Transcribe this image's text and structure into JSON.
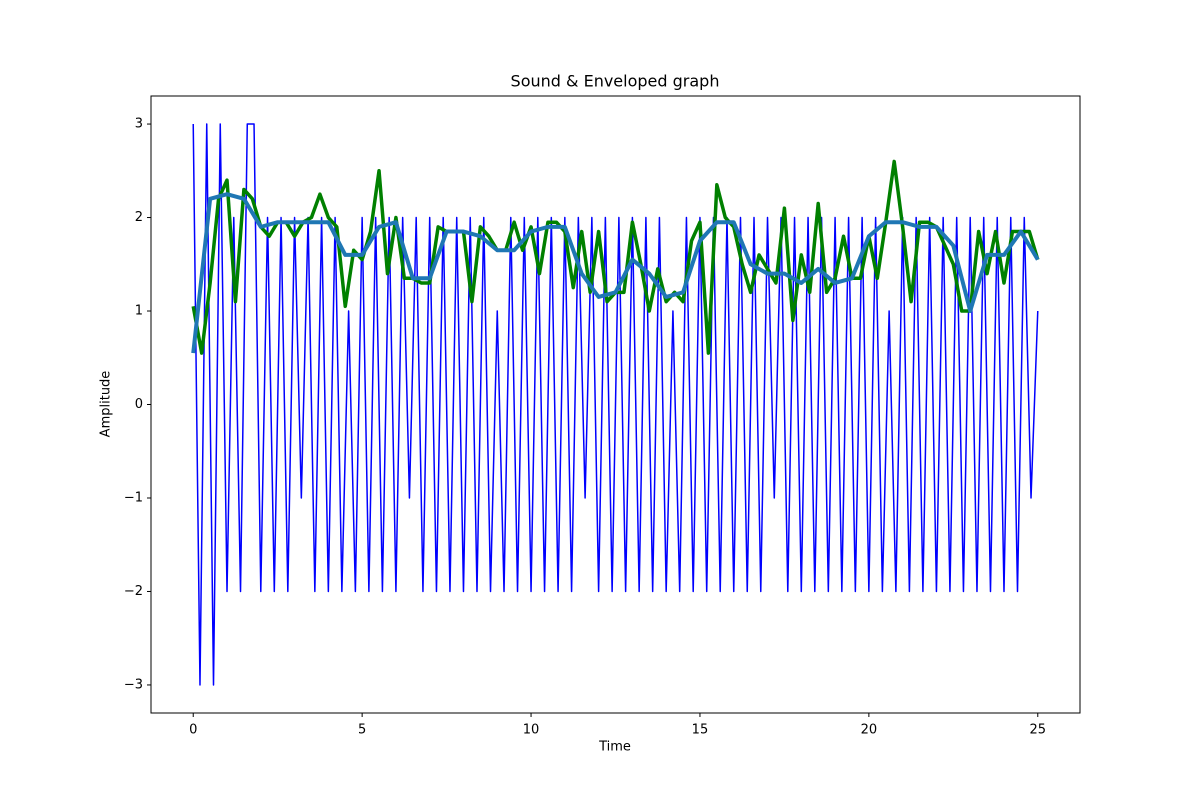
{
  "chart_data": {
    "type": "line",
    "title": "Sound & Enveloped graph",
    "x_label": "Time",
    "y_label": "Amplitude",
    "xlim": [
      -1.25,
      26.25
    ],
    "ylim": [
      -3.3,
      3.3
    ],
    "xticks": [
      0,
      5,
      10,
      15,
      20,
      25
    ],
    "yticks": [
      {
        "value": -3,
        "label": "−3"
      },
      {
        "value": -2,
        "label": "−2"
      },
      {
        "value": -1,
        "label": "−1"
      },
      0,
      1,
      2,
      3
    ],
    "series": [
      {
        "color": "#0000ff",
        "width": 1.5,
        "x": [
          0,
          0.2,
          0.4,
          0.6,
          0.8,
          1,
          1.2,
          1.4,
          1.6,
          1.8,
          2,
          2.2,
          2.4,
          2.6,
          2.8,
          3,
          3.2,
          3.4,
          3.6,
          3.8,
          4,
          4.2,
          4.4,
          4.6,
          4.8,
          5,
          5.2,
          5.4,
          5.6,
          5.8,
          6,
          6.2,
          6.4,
          6.6,
          6.8,
          7,
          7.2,
          7.4,
          7.6,
          7.8,
          8,
          8.2,
          8.4,
          8.6,
          8.8,
          9,
          9.2,
          9.4,
          9.6,
          9.8,
          10,
          10.2,
          10.4,
          10.6,
          10.8,
          11,
          11.2,
          11.4,
          11.6,
          11.8,
          12,
          12.2,
          12.4,
          12.6,
          12.8,
          13,
          13.2,
          13.4,
          13.6,
          13.8,
          14,
          14.2,
          14.4,
          14.6,
          14.8,
          15,
          15.2,
          15.4,
          15.6,
          15.8,
          16,
          16.2,
          16.4,
          16.6,
          16.8,
          17,
          17.2,
          17.4,
          17.6,
          17.8,
          18,
          18.2,
          18.4,
          18.6,
          18.8,
          19,
          19.2,
          19.4,
          19.6,
          19.8,
          20,
          20.2,
          20.4,
          20.6,
          20.8,
          21,
          21.2,
          21.4,
          21.6,
          21.8,
          22,
          22.2,
          22.4,
          22.6,
          22.8,
          23,
          23.2,
          23.4,
          23.6,
          23.8,
          24,
          24.2,
          24.4,
          24.6,
          24.8,
          25
        ],
        "values": [
          3,
          -3,
          3,
          -3,
          3,
          -2,
          2,
          -2,
          3,
          3,
          -2,
          2,
          -2,
          2,
          -2,
          2,
          -1,
          2,
          -2,
          2,
          -2,
          2,
          -2,
          1,
          -2,
          2,
          -2,
          2,
          -2,
          2,
          -2,
          2,
          -1,
          2,
          -2,
          2,
          -2,
          2,
          -2,
          2,
          -2,
          2,
          -2,
          2,
          -2,
          1,
          -2,
          2,
          -2,
          2,
          -2,
          2,
          -2,
          2,
          -2,
          2,
          -2,
          2,
          -1,
          2,
          -2,
          2,
          -2,
          2,
          -2,
          2,
          -2,
          2,
          -2,
          2,
          -2,
          1,
          -2,
          2,
          -2,
          2,
          -2,
          2,
          -2,
          2,
          -2,
          2,
          -2,
          2,
          -2,
          2,
          -1,
          2,
          -2,
          2,
          -2,
          2,
          -2,
          2,
          -2,
          2,
          -2,
          2,
          -2,
          2,
          -2,
          2,
          -2,
          1,
          -2,
          2,
          -2,
          2,
          -2,
          2,
          -2,
          2,
          -2,
          2,
          -2,
          2,
          -2,
          2,
          -2,
          2,
          -2,
          2,
          -2,
          2,
          -1,
          1
        ]
      },
      {
        "color": "#008000",
        "width": 3.5,
        "x": [
          0,
          0.25,
          0.5,
          0.75,
          1,
          1.25,
          1.5,
          1.75,
          2,
          2.25,
          2.5,
          2.75,
          3,
          3.25,
          3.5,
          3.75,
          4,
          4.25,
          4.5,
          4.75,
          5,
          5.25,
          5.5,
          5.75,
          6,
          6.25,
          6.5,
          6.75,
          7,
          7.25,
          7.5,
          7.75,
          8,
          8.25,
          8.5,
          8.75,
          9,
          9.25,
          9.5,
          9.75,
          10,
          10.25,
          10.5,
          10.75,
          11,
          11.25,
          11.5,
          11.75,
          12,
          12.25,
          12.5,
          12.75,
          13,
          13.25,
          13.5,
          13.75,
          14,
          14.25,
          14.5,
          14.75,
          15,
          15.25,
          15.5,
          15.75,
          16,
          16.25,
          16.5,
          16.75,
          17,
          17.25,
          17.5,
          17.75,
          18,
          18.25,
          18.5,
          18.75,
          19,
          19.25,
          19.5,
          19.75,
          20,
          20.25,
          20.5,
          20.75,
          21,
          21.25,
          21.5,
          21.75,
          22,
          22.25,
          22.5,
          22.75,
          23,
          23.25,
          23.5,
          23.75,
          24,
          24.25,
          24.5,
          24.75,
          25
        ],
        "values": [
          1.05,
          0.55,
          1.3,
          2.2,
          2.4,
          1.1,
          2.3,
          2.2,
          1.9,
          1.8,
          1.95,
          1.95,
          1.8,
          1.95,
          2.0,
          2.25,
          2.0,
          1.9,
          1.05,
          1.65,
          1.55,
          1.85,
          2.5,
          1.4,
          2.0,
          1.35,
          1.35,
          1.3,
          1.3,
          1.9,
          1.85,
          1.85,
          1.85,
          1.1,
          1.9,
          1.8,
          1.65,
          1.65,
          1.95,
          1.65,
          1.9,
          1.4,
          1.95,
          1.95,
          1.85,
          1.25,
          1.85,
          1.2,
          1.85,
          1.1,
          1.2,
          1.2,
          1.95,
          1.5,
          1.0,
          1.45,
          1.1,
          1.2,
          1.1,
          1.75,
          1.95,
          0.55,
          2.35,
          2.0,
          1.9,
          1.5,
          1.2,
          1.6,
          1.45,
          1.3,
          2.1,
          0.9,
          1.6,
          1.2,
          2.15,
          1.2,
          1.35,
          1.8,
          1.35,
          1.35,
          1.8,
          1.35,
          1.95,
          2.6,
          1.9,
          1.1,
          1.95,
          1.95,
          1.9,
          1.7,
          1.5,
          1.0,
          1.0,
          1.85,
          1.4,
          1.85,
          1.3,
          1.85,
          1.85,
          1.85,
          1.55
        ]
      },
      {
        "color": "#1f77b4",
        "width": 4,
        "x": [
          0,
          0.5,
          1,
          1.5,
          2,
          2.5,
          3,
          3.5,
          4,
          4.5,
          5,
          5.5,
          6,
          6.5,
          7,
          7.5,
          8,
          8.5,
          9,
          9.5,
          10,
          10.5,
          11,
          11.5,
          12,
          12.5,
          13,
          13.5,
          14,
          14.5,
          15,
          15.5,
          16,
          16.5,
          17,
          17.5,
          18,
          18.5,
          19,
          19.5,
          20,
          20.5,
          21,
          21.5,
          22,
          22.5,
          23,
          23.5,
          24,
          24.5,
          25
        ],
        "values": [
          0.55,
          2.2,
          2.25,
          2.2,
          1.9,
          1.95,
          1.95,
          1.95,
          1.95,
          1.6,
          1.6,
          1.9,
          1.95,
          1.35,
          1.35,
          1.85,
          1.85,
          1.8,
          1.65,
          1.65,
          1.85,
          1.9,
          1.9,
          1.4,
          1.15,
          1.2,
          1.55,
          1.4,
          1.15,
          1.2,
          1.75,
          1.95,
          1.95,
          1.5,
          1.4,
          1.4,
          1.3,
          1.45,
          1.3,
          1.35,
          1.8,
          1.95,
          1.95,
          1.9,
          1.9,
          1.7,
          1.0,
          1.6,
          1.6,
          1.85,
          1.55
        ]
      }
    ]
  }
}
